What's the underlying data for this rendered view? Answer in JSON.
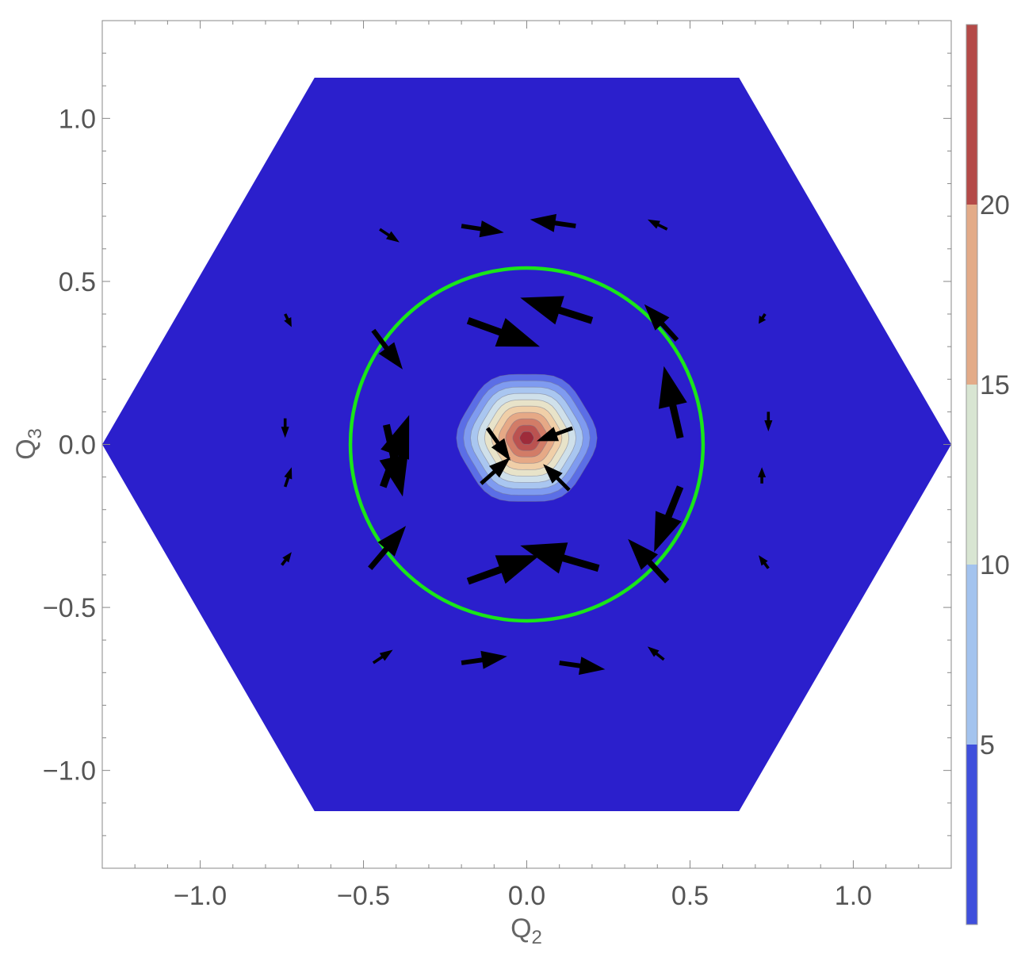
{
  "chart_data": {
    "type": "heatmap",
    "title": "",
    "xlabel": {
      "main": "Q",
      "sub": "2"
    },
    "ylabel": {
      "main": "Q",
      "sub": "3"
    },
    "xlim": [
      -1.3,
      1.3
    ],
    "ylim": [
      -1.3,
      1.3
    ],
    "x_ticks": [
      {
        "value": -1.0,
        "label": "−1.0"
      },
      {
        "value": -0.5,
        "label": "−0.5"
      },
      {
        "value": 0.0,
        "label": "0.0"
      },
      {
        "value": 0.5,
        "label": "0.5"
      },
      {
        "value": 1.0,
        "label": "1.0"
      }
    ],
    "y_ticks": [
      {
        "value": -1.0,
        "label": "−1.0"
      },
      {
        "value": -0.5,
        "label": "−0.5"
      },
      {
        "value": 0.0,
        "label": "0.0"
      },
      {
        "value": 0.5,
        "label": "0.5"
      },
      {
        "value": 1.0,
        "label": "1.0"
      }
    ],
    "domain": {
      "shape": "hexagon",
      "half_width": 1.3,
      "half_height": 1.125
    },
    "contour_levels": [
      0,
      5,
      10,
      15,
      20,
      25
    ],
    "contour_colors": [
      "#2b1fcc",
      "#5b6ee6",
      "#7f9bf0",
      "#a9c6f0",
      "#cfe0ea",
      "#e8e3c9",
      "#f0cfa8",
      "#e6a986",
      "#d27c67",
      "#bb5250",
      "#9e2b3a"
    ],
    "peak": {
      "x": 0.0,
      "y": 0.02,
      "value": 25
    },
    "circle": {
      "cx": 0.0,
      "cy": 0.0,
      "r": 0.54,
      "color": "#19e619"
    },
    "colorbar": {
      "range": [
        0,
        25
      ],
      "bands": [
        {
          "from": 0,
          "to": 5,
          "color": "#3f4fdc"
        },
        {
          "from": 5,
          "to": 10,
          "color": "#a3c3ee"
        },
        {
          "from": 10,
          "to": 15,
          "color": "#d8e5d2"
        },
        {
          "from": 15,
          "to": 20,
          "color": "#e3ab88"
        },
        {
          "from": 20,
          "to": 25,
          "color": "#b44a48"
        }
      ],
      "tick_labels": [
        {
          "value": 5,
          "label": "5"
        },
        {
          "value": 10,
          "label": "10"
        },
        {
          "value": 15,
          "label": "15"
        },
        {
          "value": 20,
          "label": "20"
        }
      ]
    },
    "vector_field": [
      {
        "x": -0.45,
        "y": 0.66,
        "dx": 0.06,
        "dy": -0.04
      },
      {
        "x": -0.2,
        "y": 0.67,
        "dx": 0.13,
        "dy": -0.02
      },
      {
        "x": 0.15,
        "y": 0.67,
        "dx": -0.14,
        "dy": 0.02
      },
      {
        "x": 0.43,
        "y": 0.66,
        "dx": -0.06,
        "dy": 0.03
      },
      {
        "x": -0.74,
        "y": 0.4,
        "dx": 0.02,
        "dy": -0.04
      },
      {
        "x": -0.47,
        "y": 0.35,
        "dx": 0.09,
        "dy": -0.12
      },
      {
        "x": -0.18,
        "y": 0.38,
        "dx": 0.22,
        "dy": -0.08
      },
      {
        "x": 0.2,
        "y": 0.38,
        "dx": -0.22,
        "dy": 0.07
      },
      {
        "x": 0.46,
        "y": 0.32,
        "dx": -0.1,
        "dy": 0.11
      },
      {
        "x": 0.73,
        "y": 0.4,
        "dx": -0.02,
        "dy": -0.03
      },
      {
        "x": -0.74,
        "y": 0.08,
        "dx": 0.0,
        "dy": -0.06
      },
      {
        "x": -0.43,
        "y": 0.06,
        "dx": 0.05,
        "dy": -0.22
      },
      {
        "x": -0.12,
        "y": 0.05,
        "dx": 0.07,
        "dy": -0.1
      },
      {
        "x": 0.14,
        "y": 0.05,
        "dx": -0.11,
        "dy": -0.04
      },
      {
        "x": 0.47,
        "y": 0.02,
        "dx": -0.05,
        "dy": 0.22
      },
      {
        "x": 0.74,
        "y": 0.1,
        "dx": 0.0,
        "dy": -0.06
      },
      {
        "x": -0.74,
        "y": -0.13,
        "dx": 0.02,
        "dy": 0.06
      },
      {
        "x": -0.44,
        "y": -0.13,
        "dx": 0.08,
        "dy": 0.22
      },
      {
        "x": -0.14,
        "y": -0.12,
        "dx": 0.09,
        "dy": 0.08
      },
      {
        "x": 0.13,
        "y": -0.14,
        "dx": -0.08,
        "dy": 0.08
      },
      {
        "x": 0.47,
        "y": -0.13,
        "dx": -0.08,
        "dy": -0.2
      },
      {
        "x": 0.72,
        "y": -0.12,
        "dx": 0.0,
        "dy": 0.05
      },
      {
        "x": -0.75,
        "y": -0.37,
        "dx": 0.03,
        "dy": 0.04
      },
      {
        "x": -0.48,
        "y": -0.38,
        "dx": 0.11,
        "dy": 0.13
      },
      {
        "x": -0.18,
        "y": -0.42,
        "dx": 0.22,
        "dy": 0.08
      },
      {
        "x": 0.22,
        "y": -0.38,
        "dx": -0.24,
        "dy": 0.07
      },
      {
        "x": 0.43,
        "y": -0.42,
        "dx": -0.12,
        "dy": 0.13
      },
      {
        "x": 0.74,
        "y": -0.38,
        "dx": -0.03,
        "dy": 0.04
      },
      {
        "x": -0.47,
        "y": -0.67,
        "dx": 0.06,
        "dy": 0.04
      },
      {
        "x": -0.2,
        "y": -0.67,
        "dx": 0.14,
        "dy": 0.02
      },
      {
        "x": 0.1,
        "y": -0.67,
        "dx": 0.14,
        "dy": -0.02
      },
      {
        "x": 0.42,
        "y": -0.66,
        "dx": -0.05,
        "dy": 0.04
      }
    ]
  }
}
